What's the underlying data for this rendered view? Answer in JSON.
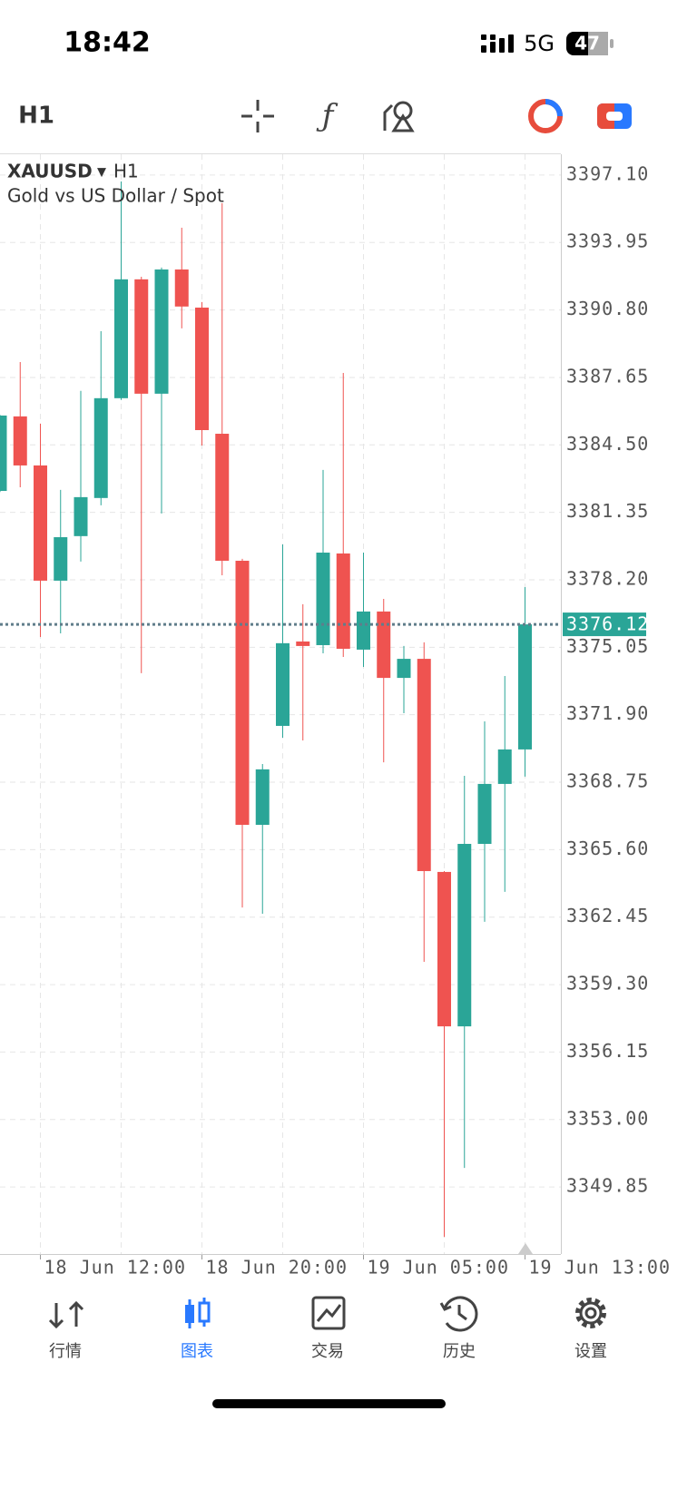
{
  "status_bar": {
    "time": "18:42",
    "network": "5G",
    "battery": "47"
  },
  "toolbar": {
    "timeframe": "H1"
  },
  "chart_data": {
    "type": "candlestick",
    "symbol": "XAUUSD",
    "timeframe": "H1",
    "description": "Gold vs US Dollar / Spot",
    "categories": [
      null,
      null,
      "18 Jun 12:00",
      null,
      null,
      null,
      null,
      null,
      null,
      null,
      "18 Jun 20:00",
      null,
      null,
      null,
      null,
      null,
      null,
      null,
      "19 Jun 05:00",
      null,
      null,
      null,
      null,
      null,
      null,
      null,
      "19 Jun 13:00"
    ],
    "open": [
      3382.35,
      3385.83,
      3383.54,
      3378.16,
      3380.24,
      3382.02,
      3386.68,
      3392.23,
      3386.89,
      3392.69,
      3390.91,
      3385.02,
      3379.09,
      3366.76,
      3371.38,
      3375.32,
      3375.15,
      3379.43,
      3374.94,
      3376.72,
      3373.62,
      3374.51,
      3364.56,
      3357.35,
      3365.87,
      3368.67,
      3370.28
    ],
    "high": [
      3385.9,
      3388.37,
      3385.49,
      3382.4,
      3387.02,
      3389.81,
      3396.8,
      3392.35,
      3392.78,
      3394.64,
      3391.17,
      3395.79,
      3379.18,
      3369.6,
      3379.85,
      3377.06,
      3383.33,
      3387.86,
      3379.47,
      3377.31,
      3375.11,
      3375.28,
      3364.6,
      3369.05,
      3371.59,
      3373.71,
      3377.86
    ],
    "low": [
      3382.3,
      3382.52,
      3375.53,
      3375.7,
      3379.05,
      3381.68,
      3386.6,
      3373.84,
      3381.3,
      3389.94,
      3384.47,
      3378.41,
      3362.9,
      3362.61,
      3370.83,
      3370.7,
      3374.77,
      3374.6,
      3374.13,
      3369.68,
      3371.97,
      3360.36,
      3347.52,
      3350.74,
      3362.23,
      3363.63,
      3369.01
    ],
    "close": [
      3385.87,
      3383.54,
      3378.16,
      3380.19,
      3382.06,
      3386.68,
      3392.23,
      3386.89,
      3392.69,
      3390.96,
      3385.19,
      3379.09,
      3366.76,
      3369.35,
      3375.24,
      3375.11,
      3379.47,
      3374.98,
      3376.72,
      3373.62,
      3374.51,
      3364.6,
      3357.35,
      3365.87,
      3368.67,
      3370.28,
      3376.12
    ],
    "up_color": "#2aa597",
    "down_color": "#ef5350",
    "current_price": 3376.12,
    "ylim": [
      3346.72,
      3398.07
    ],
    "yticks": [
      {
        "value": 3397.1,
        "label": "3397.10"
      },
      3393.95,
      {
        "value": 3390.8,
        "label": "3390.80"
      },
      3387.65,
      {
        "value": 3384.5,
        "label": "3384.50"
      },
      3381.35,
      {
        "value": 3378.2,
        "label": "3378.20"
      },
      3375.05,
      {
        "value": 3371.9,
        "label": "3371.90"
      },
      3368.75,
      {
        "value": 3365.6,
        "label": "3365.60"
      },
      3362.45,
      {
        "value": 3359.3,
        "label": "3359.30"
      },
      3356.15,
      {
        "value": 3353.0,
        "label": "3353.00"
      },
      3349.85
    ],
    "grid": true
  },
  "tab_bar": {
    "tabs": [
      {
        "label": "行情",
        "active": false
      },
      {
        "label": "图表",
        "active": true
      },
      {
        "label": "交易",
        "active": false
      },
      {
        "label": "历史",
        "active": false
      },
      {
        "label": "设置",
        "active": false
      }
    ]
  }
}
